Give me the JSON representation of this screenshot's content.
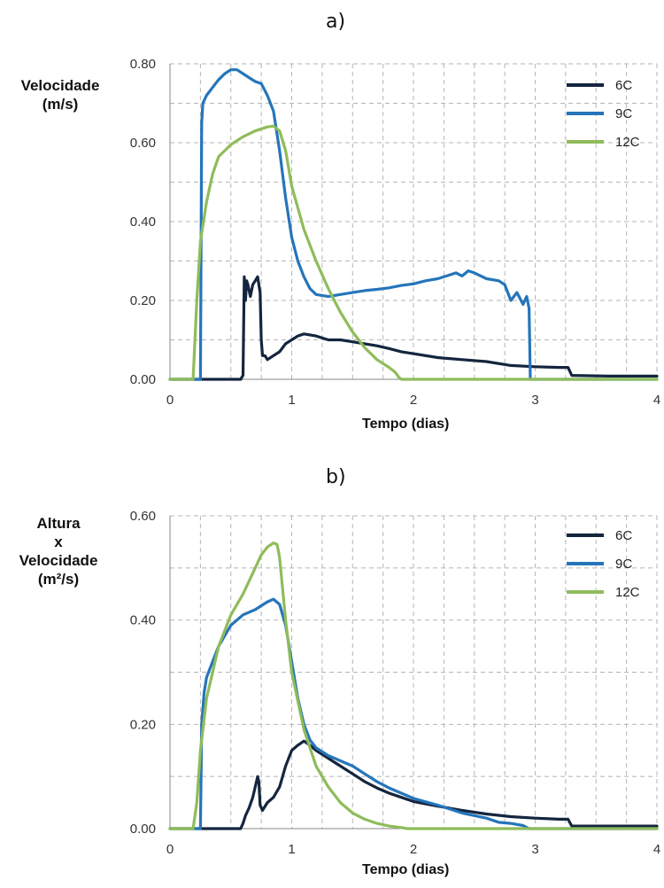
{
  "chart_data": [
    {
      "type": "line",
      "panel_label": "a)",
      "ylabel_lines": [
        "Velocidade",
        "(m/s)"
      ],
      "xlabel": "Tempo (dias)",
      "xlim": [
        0,
        4
      ],
      "ylim": [
        0,
        0.8
      ],
      "xticks": [
        "0",
        "1",
        "2",
        "3",
        "4"
      ],
      "yticks": [
        "0.00",
        "0.20",
        "0.40",
        "0.60",
        "0.80"
      ],
      "grid": true,
      "legend_position": "top-right",
      "series": [
        {
          "name": "6C",
          "color": "#14253e",
          "x": [
            0,
            0.58,
            0.6,
            0.61,
            0.62,
            0.63,
            0.64,
            0.66,
            0.68,
            0.7,
            0.72,
            0.74,
            0.75,
            0.76,
            0.78,
            0.8,
            0.85,
            0.9,
            0.95,
            1.0,
            1.05,
            1.1,
            1.2,
            1.3,
            1.4,
            1.5,
            1.6,
            1.7,
            1.8,
            1.9,
            2.0,
            2.2,
            2.4,
            2.6,
            2.8,
            3.0,
            3.2,
            3.27,
            3.3,
            3.6,
            3.9,
            4.0
          ],
          "y": [
            0,
            0,
            0.01,
            0.26,
            0.2,
            0.25,
            0.24,
            0.21,
            0.24,
            0.25,
            0.26,
            0.22,
            0.1,
            0.06,
            0.06,
            0.05,
            0.06,
            0.07,
            0.09,
            0.1,
            0.11,
            0.115,
            0.11,
            0.1,
            0.1,
            0.095,
            0.09,
            0.085,
            0.078,
            0.07,
            0.065,
            0.055,
            0.05,
            0.045,
            0.035,
            0.032,
            0.03,
            0.03,
            0.01,
            0.008,
            0.008,
            0.008
          ]
        },
        {
          "name": "9C",
          "color": "#2575ba",
          "x": [
            0,
            0.25,
            0.26,
            0.27,
            0.3,
            0.35,
            0.4,
            0.45,
            0.5,
            0.55,
            0.6,
            0.65,
            0.7,
            0.75,
            0.8,
            0.85,
            0.9,
            0.95,
            1.0,
            1.05,
            1.1,
            1.15,
            1.2,
            1.3,
            1.4,
            1.5,
            1.6,
            1.7,
            1.8,
            1.9,
            2.0,
            2.1,
            2.2,
            2.3,
            2.35,
            2.4,
            2.45,
            2.5,
            2.6,
            2.7,
            2.75,
            2.8,
            2.85,
            2.9,
            2.93,
            2.95,
            2.96,
            3.0,
            4.0
          ],
          "y": [
            0,
            0,
            0.65,
            0.7,
            0.72,
            0.74,
            0.76,
            0.775,
            0.785,
            0.785,
            0.775,
            0.765,
            0.755,
            0.75,
            0.72,
            0.68,
            0.58,
            0.46,
            0.36,
            0.3,
            0.26,
            0.23,
            0.215,
            0.21,
            0.215,
            0.22,
            0.225,
            0.228,
            0.232,
            0.238,
            0.242,
            0.25,
            0.255,
            0.265,
            0.27,
            0.262,
            0.275,
            0.27,
            0.255,
            0.25,
            0.24,
            0.2,
            0.22,
            0.19,
            0.21,
            0.18,
            0.0,
            0.0,
            0.0
          ]
        },
        {
          "name": "12C",
          "color": "#8fbc5a",
          "x": [
            0,
            0.19,
            0.22,
            0.25,
            0.3,
            0.35,
            0.4,
            0.5,
            0.6,
            0.7,
            0.8,
            0.85,
            0.9,
            0.95,
            1.0,
            1.1,
            1.2,
            1.3,
            1.4,
            1.5,
            1.6,
            1.7,
            1.75,
            1.8,
            1.85,
            1.88,
            1.9,
            1.92,
            2.0,
            4.0
          ],
          "y": [
            0,
            0,
            0.2,
            0.35,
            0.45,
            0.52,
            0.565,
            0.595,
            0.615,
            0.63,
            0.64,
            0.642,
            0.63,
            0.58,
            0.49,
            0.38,
            0.3,
            0.23,
            0.17,
            0.12,
            0.08,
            0.05,
            0.04,
            0.03,
            0.018,
            0.005,
            0.0,
            0.0,
            0.0,
            0.0
          ]
        }
      ]
    },
    {
      "type": "line",
      "panel_label": "b)",
      "ylabel_lines": [
        "Altura",
        "x",
        "Velocidade",
        "(m²/s)"
      ],
      "xlabel": "Tempo (dias)",
      "xlim": [
        0,
        4
      ],
      "ylim": [
        0,
        0.6
      ],
      "xticks": [
        "0",
        "1",
        "2",
        "3",
        "4"
      ],
      "yticks": [
        "0.00",
        "0.20",
        "0.40",
        "0.60"
      ],
      "grid": true,
      "legend_position": "top-right",
      "series": [
        {
          "name": "6C",
          "color": "#14253e",
          "x": [
            0,
            0.58,
            0.6,
            0.62,
            0.65,
            0.68,
            0.7,
            0.72,
            0.73,
            0.74,
            0.76,
            0.8,
            0.85,
            0.9,
            0.95,
            1.0,
            1.05,
            1.1,
            1.15,
            1.2,
            1.3,
            1.4,
            1.5,
            1.6,
            1.7,
            1.8,
            1.9,
            2.0,
            2.2,
            2.4,
            2.6,
            2.8,
            3.0,
            3.2,
            3.27,
            3.3,
            3.6,
            4.0
          ],
          "y": [
            0,
            0,
            0.01,
            0.025,
            0.04,
            0.06,
            0.08,
            0.1,
            0.09,
            0.045,
            0.035,
            0.05,
            0.06,
            0.08,
            0.12,
            0.15,
            0.16,
            0.168,
            0.16,
            0.15,
            0.135,
            0.12,
            0.105,
            0.09,
            0.078,
            0.068,
            0.06,
            0.052,
            0.043,
            0.035,
            0.028,
            0.023,
            0.02,
            0.018,
            0.018,
            0.005,
            0.005,
            0.005
          ]
        },
        {
          "name": "9C",
          "color": "#2575ba",
          "x": [
            0,
            0.25,
            0.26,
            0.28,
            0.3,
            0.35,
            0.4,
            0.5,
            0.6,
            0.7,
            0.8,
            0.85,
            0.9,
            0.95,
            1.0,
            1.05,
            1.1,
            1.15,
            1.2,
            1.3,
            1.4,
            1.5,
            1.6,
            1.7,
            1.8,
            1.9,
            2.0,
            2.2,
            2.4,
            2.6,
            2.7,
            2.8,
            2.85,
            2.9,
            2.95,
            3.0,
            4.0
          ],
          "y": [
            0,
            0,
            0.2,
            0.26,
            0.29,
            0.32,
            0.35,
            0.39,
            0.41,
            0.42,
            0.435,
            0.44,
            0.43,
            0.39,
            0.32,
            0.25,
            0.2,
            0.17,
            0.155,
            0.14,
            0.13,
            0.12,
            0.105,
            0.09,
            0.078,
            0.068,
            0.058,
            0.045,
            0.03,
            0.02,
            0.012,
            0.01,
            0.008,
            0.006,
            0.0,
            0.0,
            0.0
          ]
        },
        {
          "name": "12C",
          "color": "#8fbc5a",
          "x": [
            0,
            0.19,
            0.22,
            0.25,
            0.3,
            0.4,
            0.5,
            0.6,
            0.7,
            0.75,
            0.8,
            0.85,
            0.88,
            0.9,
            0.95,
            1.0,
            1.1,
            1.2,
            1.3,
            1.4,
            1.5,
            1.6,
            1.7,
            1.8,
            1.9,
            1.95,
            2.0,
            4.0
          ],
          "y": [
            0,
            0,
            0.05,
            0.15,
            0.25,
            0.35,
            0.41,
            0.45,
            0.5,
            0.525,
            0.54,
            0.548,
            0.545,
            0.52,
            0.4,
            0.3,
            0.19,
            0.12,
            0.08,
            0.05,
            0.03,
            0.018,
            0.01,
            0.005,
            0.002,
            0.0,
            0.0,
            0.0
          ]
        }
      ]
    }
  ]
}
